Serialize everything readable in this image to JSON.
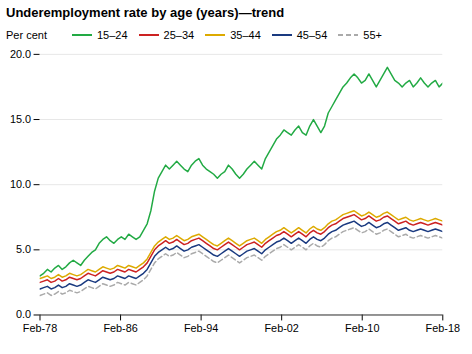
{
  "chart_data": {
    "type": "line",
    "title": "Underemployment rate by age (years)—trend",
    "ylabel": "Per cent",
    "x": [
      0,
      1,
      2,
      3,
      4,
      5,
      6,
      7,
      8,
      9,
      10,
      11,
      12,
      13,
      14,
      15,
      16,
      17,
      18,
      19,
      20,
      21,
      22,
      23,
      24,
      25,
      26,
      27,
      28,
      29,
      30,
      31,
      32,
      33,
      34,
      35,
      36,
      37,
      38,
      39,
      40,
      41,
      42,
      43,
      44,
      45,
      46,
      47,
      48,
      49,
      50,
      51,
      52,
      53,
      54,
      55,
      56,
      57,
      58,
      59,
      60,
      61,
      62,
      63,
      64,
      65,
      66,
      67,
      68,
      69,
      70,
      71,
      72,
      73,
      74,
      75,
      76,
      77,
      78,
      79,
      80,
      81,
      82,
      83,
      84,
      85,
      86,
      87,
      88,
      89,
      90,
      91,
      92,
      93,
      94,
      95,
      96,
      97,
      98,
      99,
      100,
      101,
      102,
      103,
      104,
      105,
      106,
      107,
      108,
      109
    ],
    "xlim": [
      0,
      109
    ],
    "xticks": [
      {
        "value": 0,
        "label": "Feb-78"
      },
      {
        "value": 21.8,
        "label": "Feb-86"
      },
      {
        "value": 43.6,
        "label": "Feb-94"
      },
      {
        "value": 65.4,
        "label": "Feb-02"
      },
      {
        "value": 87.2,
        "label": "Feb-10"
      },
      {
        "value": 109,
        "label": "Feb-18"
      }
    ],
    "ylim": [
      0.0,
      20.0
    ],
    "yticks": [
      {
        "value": 0.0,
        "label": "0.0"
      },
      {
        "value": 5.0,
        "label": "5.0"
      },
      {
        "value": 10.0,
        "label": "10.0"
      },
      {
        "value": 15.0,
        "label": "15.0"
      },
      {
        "value": 20.0,
        "label": "20.0"
      }
    ],
    "grid": true,
    "legend": "top",
    "series": [
      {
        "name": "15–24",
        "color": "#22aa44",
        "line_style": "solid",
        "values": [
          3.0,
          3.2,
          3.5,
          3.3,
          3.6,
          3.8,
          3.5,
          3.7,
          4.0,
          4.2,
          4.0,
          3.8,
          4.2,
          4.5,
          4.8,
          5.0,
          5.5,
          5.8,
          6.0,
          5.7,
          5.5,
          5.8,
          6.0,
          5.8,
          6.2,
          6.0,
          5.8,
          6.0,
          6.5,
          7.0,
          8.0,
          9.5,
          10.5,
          11.0,
          11.5,
          11.2,
          11.5,
          11.8,
          11.5,
          11.2,
          11.0,
          11.5,
          11.8,
          12.0,
          11.5,
          11.2,
          11.0,
          10.8,
          10.5,
          10.8,
          11.0,
          11.5,
          11.2,
          10.8,
          10.5,
          10.8,
          11.2,
          11.5,
          11.8,
          11.5,
          11.2,
          12.0,
          12.5,
          13.0,
          13.5,
          13.8,
          14.2,
          14.0,
          13.8,
          14.2,
          14.5,
          14.0,
          13.8,
          14.5,
          15.0,
          14.5,
          14.0,
          14.5,
          15.5,
          16.0,
          16.5,
          17.0,
          17.5,
          17.8,
          18.2,
          18.5,
          18.2,
          17.8,
          18.0,
          18.5,
          18.0,
          17.5,
          18.0,
          18.5,
          19.0,
          18.5,
          18.0,
          17.8,
          17.5,
          17.8,
          18.0,
          17.5,
          17.8,
          18.2,
          17.8,
          17.5,
          17.8,
          18.0,
          17.5,
          17.8
        ]
      },
      {
        "name": "25–34",
        "color": "#cc2222",
        "line_style": "solid",
        "values": [
          2.5,
          2.6,
          2.7,
          2.5,
          2.6,
          2.8,
          2.6,
          2.7,
          2.9,
          2.8,
          2.7,
          2.8,
          3.0,
          3.2,
          3.1,
          3.0,
          3.2,
          3.4,
          3.3,
          3.2,
          3.3,
          3.5,
          3.4,
          3.3,
          3.5,
          3.4,
          3.3,
          3.5,
          3.7,
          4.0,
          4.5,
          5.0,
          5.3,
          5.5,
          5.7,
          5.5,
          5.6,
          5.8,
          5.6,
          5.4,
          5.5,
          5.7,
          5.8,
          5.9,
          5.7,
          5.5,
          5.3,
          5.1,
          5.0,
          5.2,
          5.4,
          5.6,
          5.4,
          5.2,
          5.0,
          5.2,
          5.4,
          5.5,
          5.6,
          5.4,
          5.2,
          5.5,
          5.7,
          5.9,
          6.1,
          6.2,
          6.4,
          6.2,
          6.0,
          6.2,
          6.4,
          6.2,
          6.0,
          6.3,
          6.5,
          6.3,
          6.2,
          6.4,
          6.7,
          6.9,
          7.0,
          7.2,
          7.4,
          7.5,
          7.6,
          7.7,
          7.5,
          7.3,
          7.4,
          7.6,
          7.4,
          7.2,
          7.3,
          7.5,
          7.6,
          7.4,
          7.2,
          7.0,
          7.1,
          7.2,
          7.0,
          6.9,
          7.0,
          7.1,
          7.0,
          6.9,
          7.0,
          7.1,
          7.0,
          6.9
        ]
      },
      {
        "name": "35–44",
        "color": "#ddaa00",
        "line_style": "solid",
        "values": [
          2.8,
          2.9,
          3.0,
          2.8,
          2.9,
          3.1,
          2.9,
          3.0,
          3.2,
          3.1,
          3.0,
          3.1,
          3.3,
          3.5,
          3.4,
          3.3,
          3.5,
          3.7,
          3.6,
          3.5,
          3.6,
          3.8,
          3.7,
          3.6,
          3.8,
          3.7,
          3.6,
          3.8,
          4.0,
          4.3,
          4.8,
          5.3,
          5.6,
          5.8,
          6.0,
          5.8,
          5.9,
          6.1,
          5.9,
          5.7,
          5.8,
          6.0,
          6.1,
          6.2,
          6.0,
          5.8,
          5.6,
          5.4,
          5.3,
          5.5,
          5.7,
          5.9,
          5.7,
          5.5,
          5.3,
          5.5,
          5.7,
          5.8,
          5.9,
          5.7,
          5.5,
          5.8,
          6.0,
          6.2,
          6.4,
          6.5,
          6.7,
          6.5,
          6.3,
          6.5,
          6.7,
          6.5,
          6.3,
          6.6,
          6.8,
          6.6,
          6.5,
          6.7,
          7.0,
          7.2,
          7.3,
          7.5,
          7.7,
          7.8,
          7.9,
          8.0,
          7.8,
          7.6,
          7.7,
          7.9,
          7.7,
          7.5,
          7.6,
          7.8,
          7.9,
          7.7,
          7.5,
          7.3,
          7.4,
          7.5,
          7.3,
          7.2,
          7.3,
          7.4,
          7.3,
          7.2,
          7.3,
          7.4,
          7.3,
          7.2
        ]
      },
      {
        "name": "45–54",
        "color": "#1a3a80",
        "line_style": "solid",
        "values": [
          2.0,
          2.1,
          2.2,
          2.0,
          2.1,
          2.3,
          2.1,
          2.2,
          2.4,
          2.3,
          2.2,
          2.3,
          2.5,
          2.7,
          2.6,
          2.5,
          2.7,
          2.9,
          2.8,
          2.7,
          2.8,
          3.0,
          2.9,
          2.8,
          3.0,
          2.9,
          2.8,
          3.0,
          3.2,
          3.5,
          4.0,
          4.5,
          4.8,
          5.0,
          5.2,
          5.0,
          5.1,
          5.3,
          5.1,
          4.9,
          5.0,
          5.2,
          5.3,
          5.4,
          5.2,
          5.0,
          4.8,
          4.6,
          4.5,
          4.7,
          4.9,
          5.1,
          4.9,
          4.7,
          4.5,
          4.7,
          4.9,
          5.0,
          5.1,
          4.9,
          4.7,
          5.0,
          5.2,
          5.4,
          5.6,
          5.7,
          5.9,
          5.7,
          5.5,
          5.7,
          5.9,
          5.7,
          5.5,
          5.8,
          6.0,
          5.8,
          5.7,
          5.9,
          6.2,
          6.4,
          6.5,
          6.7,
          6.9,
          7.0,
          7.1,
          7.2,
          7.0,
          6.8,
          6.9,
          7.1,
          6.9,
          6.7,
          6.8,
          7.0,
          7.1,
          6.9,
          6.7,
          6.5,
          6.6,
          6.7,
          6.5,
          6.4,
          6.5,
          6.6,
          6.5,
          6.4,
          6.5,
          6.6,
          6.5,
          6.4
        ]
      },
      {
        "name": "55+",
        "color": "#aaaaaa",
        "line_style": "dashed",
        "values": [
          1.5,
          1.6,
          1.7,
          1.5,
          1.6,
          1.8,
          1.6,
          1.7,
          1.9,
          1.8,
          1.7,
          1.8,
          2.0,
          2.2,
          2.1,
          2.0,
          2.2,
          2.4,
          2.3,
          2.2,
          2.3,
          2.5,
          2.4,
          2.3,
          2.5,
          2.4,
          2.3,
          2.5,
          2.7,
          3.0,
          3.5,
          4.0,
          4.3,
          4.5,
          4.7,
          4.5,
          4.6,
          4.8,
          4.6,
          4.4,
          4.5,
          4.7,
          4.8,
          4.9,
          4.7,
          4.5,
          4.3,
          4.1,
          4.0,
          4.2,
          4.4,
          4.6,
          4.4,
          4.2,
          4.0,
          4.2,
          4.4,
          4.5,
          4.6,
          4.4,
          4.2,
          4.5,
          4.7,
          4.9,
          5.1,
          5.2,
          5.4,
          5.2,
          5.0,
          5.2,
          5.4,
          5.2,
          5.0,
          5.3,
          5.5,
          5.3,
          5.2,
          5.4,
          5.7,
          5.9,
          6.0,
          6.2,
          6.4,
          6.5,
          6.6,
          6.7,
          6.5,
          6.3,
          6.4,
          6.6,
          6.4,
          6.2,
          6.3,
          6.5,
          6.6,
          6.4,
          6.2,
          6.0,
          6.1,
          6.2,
          6.0,
          5.9,
          6.0,
          6.1,
          6.0,
          5.9,
          6.0,
          6.1,
          6.0,
          5.9
        ]
      }
    ]
  }
}
